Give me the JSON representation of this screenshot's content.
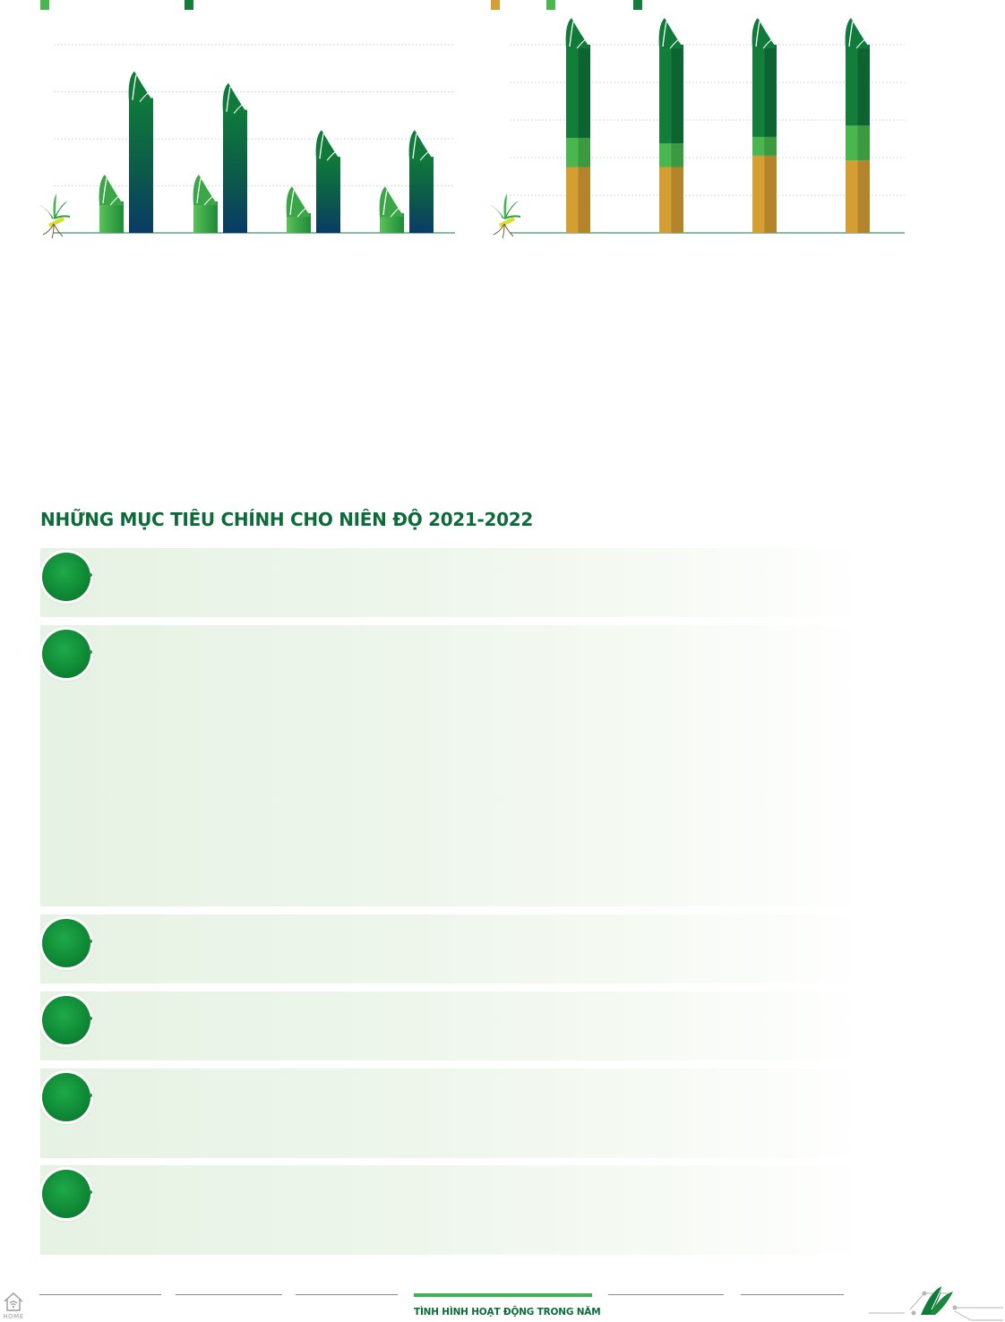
{
  "colors": {
    "accent": "#0d6b3a",
    "light_green": "#49b74d",
    "dark_green": "#137d3a",
    "gold": "#d49e32",
    "navy": "#0a3a66"
  },
  "legend_left": [
    "light-green-swatch",
    "dark-green-swatch"
  ],
  "legend_right": [
    "gold-swatch",
    "light-green-swatch",
    "dark-green-swatch"
  ],
  "chart_data": [
    {
      "type": "bar",
      "categories": [
        "",
        "",
        "",
        ""
      ],
      "series": [
        {
          "values": [
            1.2,
            1.2,
            0.95,
            0.95
          ]
        },
        {
          "values": [
            3.4,
            3.15,
            2.15,
            2.15
          ]
        }
      ],
      "ylim": [
        0,
        4
      ],
      "grid": true
    },
    {
      "type": "bar",
      "stacked": true,
      "categories": [
        "",
        "",
        "",
        ""
      ],
      "series": [
        {
          "values": [
            35,
            35,
            41,
            38.5
          ]
        },
        {
          "values": [
            15.5,
            12.5,
            10,
            18.5
          ]
        },
        {
          "values": [
            49.5,
            52.5,
            49,
            43
          ]
        }
      ],
      "ylim": [
        0,
        100
      ],
      "grid": true
    }
  ],
  "section": {
    "title": "NHỮNG MỤC TIÊU CHÍNH CHO NIÊN ĐỘ 2021-2022",
    "goals": [
      "goal-1",
      "goal-2",
      "goal-3",
      "goal-4",
      "goal-5",
      "goal-6"
    ]
  },
  "footer": {
    "active_label": "TÌNH HÌNH HOẠT ĐỘNG TRONG NĂM",
    "home_label": "HOME"
  }
}
